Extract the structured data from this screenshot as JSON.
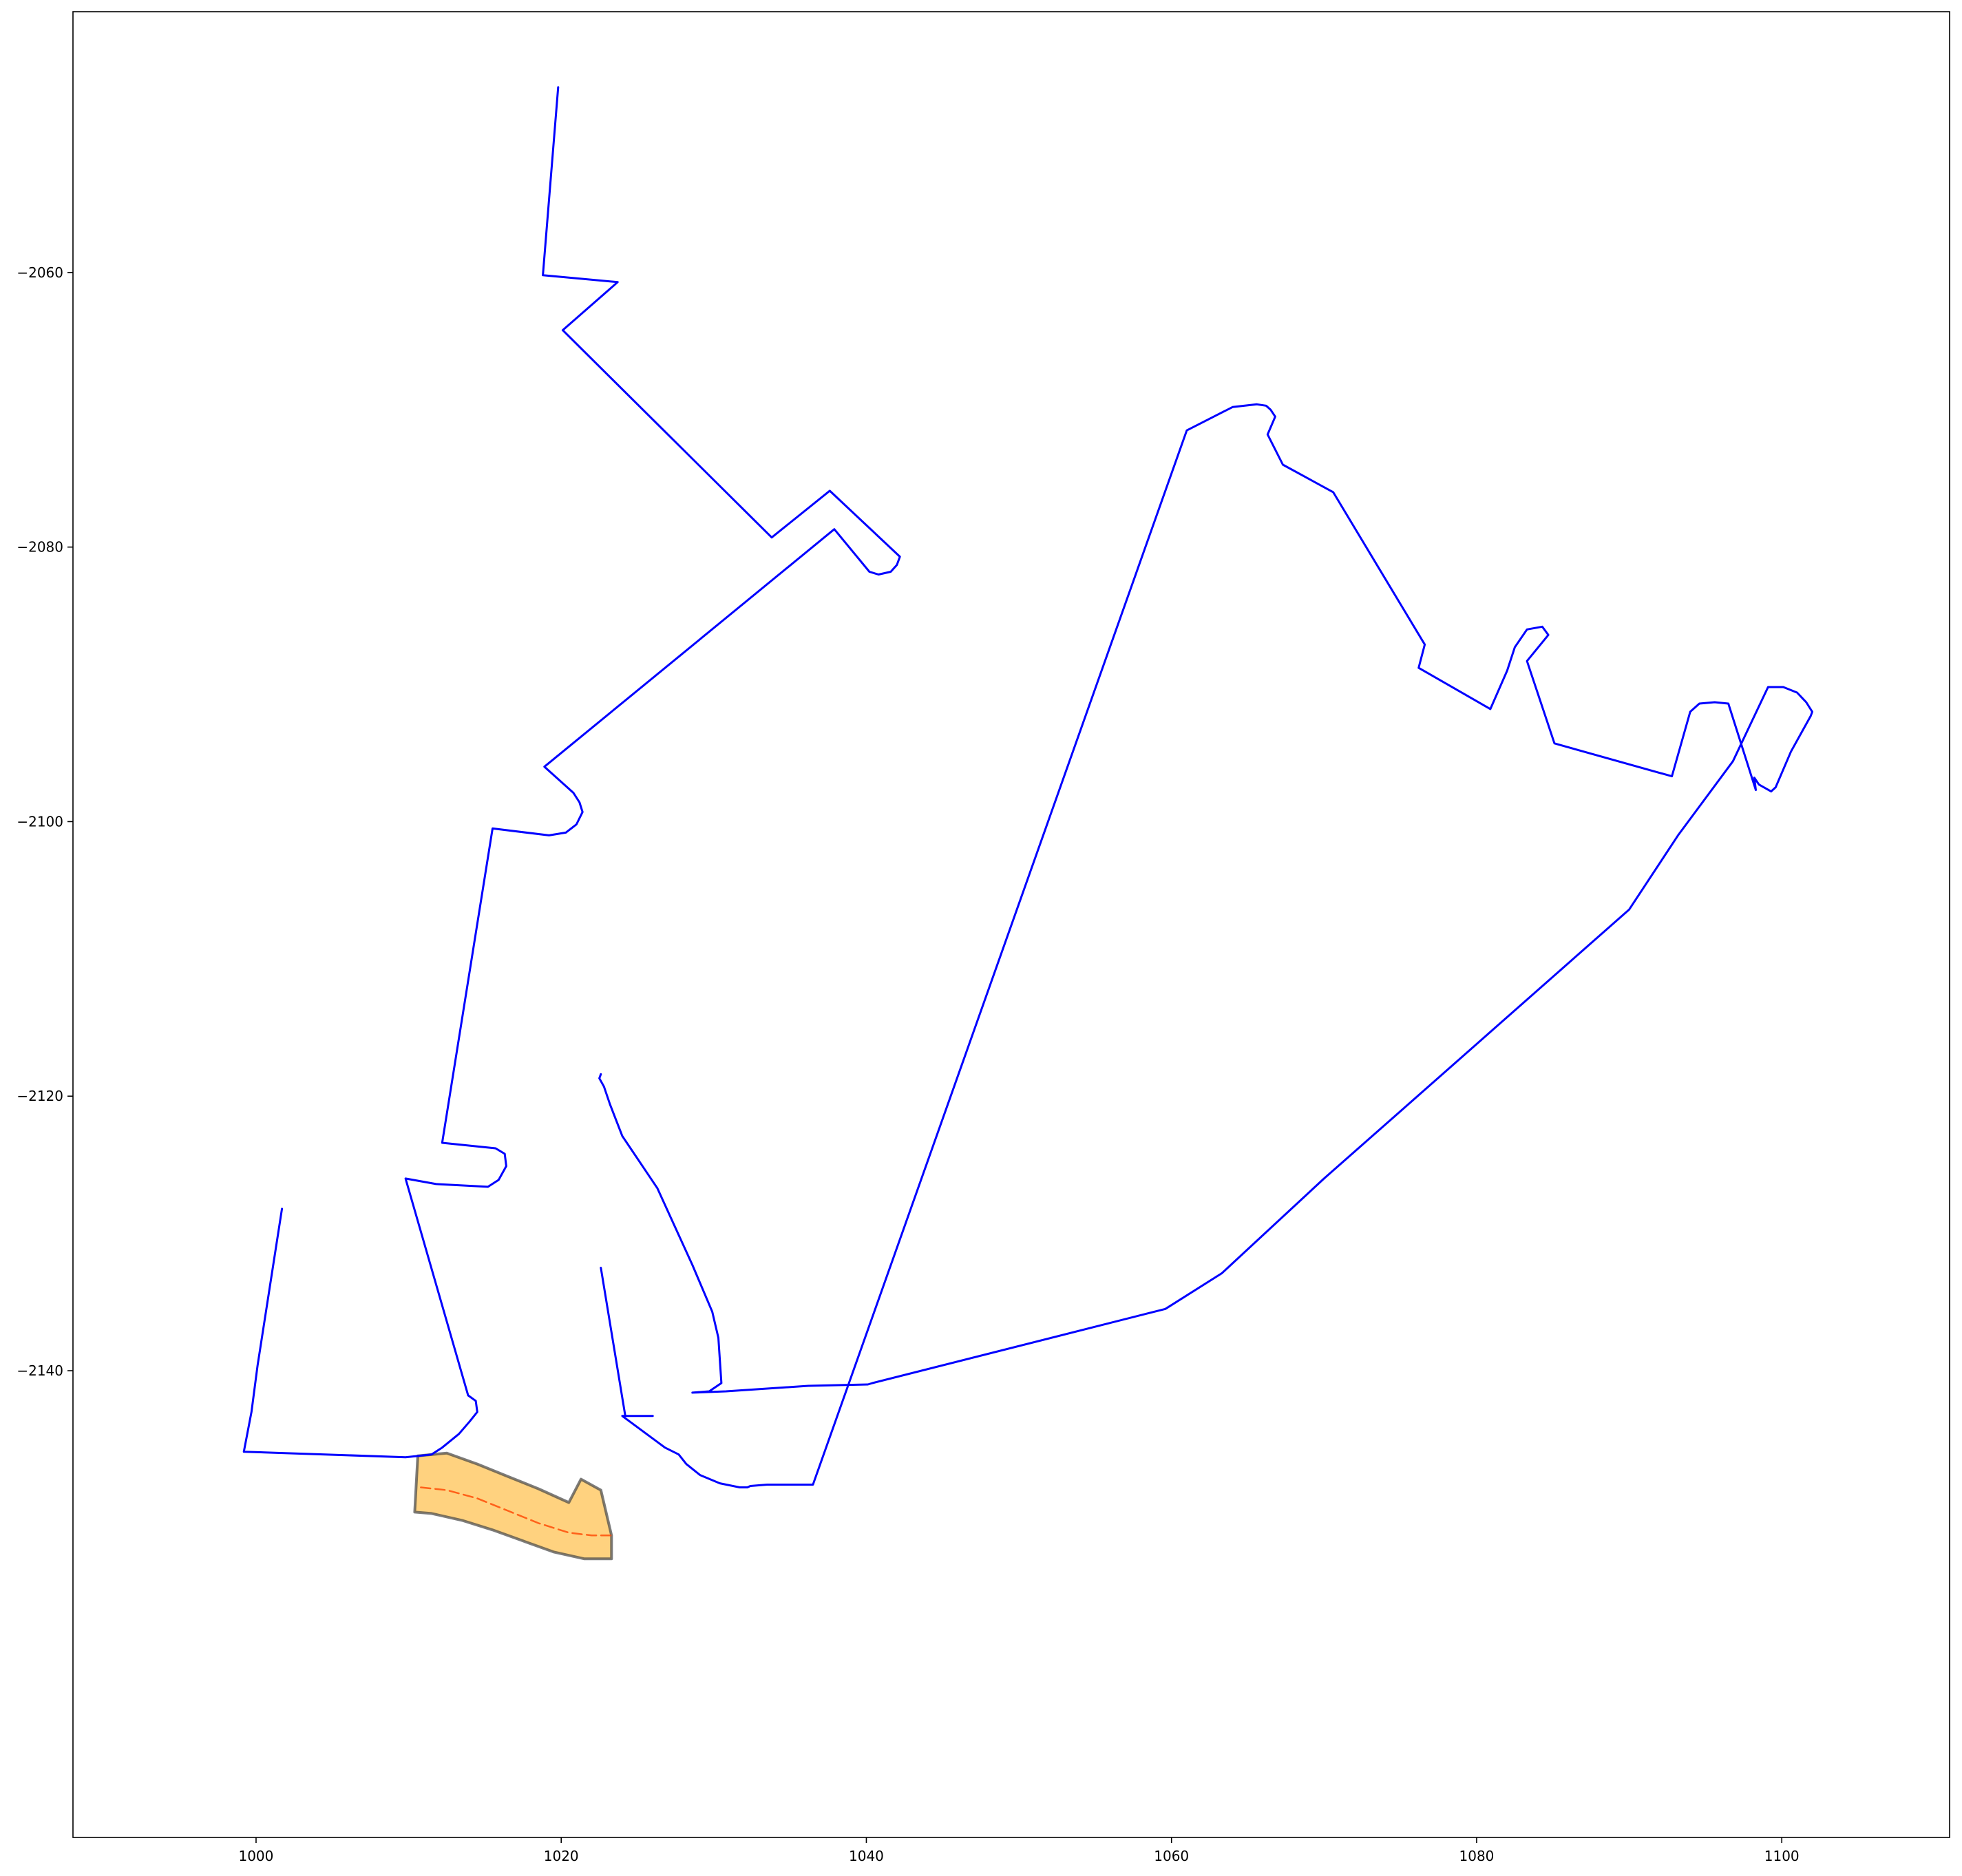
{
  "chart_data": {
    "type": "line",
    "title": "",
    "xlabel": "",
    "ylabel": "",
    "xlim": [
      988,
      1111
    ],
    "ylim": [
      -2174,
      -2041
    ],
    "xticks": [
      1000,
      1020,
      1040,
      1060,
      1080,
      1100
    ],
    "yticks": [
      -2060,
      -2080,
      -2100,
      -2120,
      -2140
    ],
    "xtick_labels": [
      "1000",
      "1020",
      "1040",
      "1060",
      "1080",
      "1100"
    ],
    "ytick_labels": [
      "−2060",
      "−2080",
      "−2100",
      "−2120",
      "−2140"
    ],
    "grid": false,
    "legend": "none",
    "colors": {
      "boundary": "#0000ff",
      "fill": "#ffa500",
      "fill_edge": "#444444",
      "centerline": "#ff4500"
    },
    "series": [
      {
        "kind": "boundary-west",
        "color": "#0000ff",
        "x": [
          1019.8,
          1018.8,
          1023.7,
          1020.1,
          1033.8,
          1037.6,
          1042.2,
          1042.0,
          1041.6,
          1040.8,
          1040.2,
          1037.9,
          1018.9,
          1020.8,
          1021.2,
          1021.4,
          1021.0,
          1020.3,
          1019.2,
          1015.5,
          1012.2,
          1015.7,
          1016.3,
          1016.4,
          1015.9,
          1015.2,
          1011.8,
          1009.8,
          1013.9,
          1014.4,
          1014.5,
          1014.0,
          1013.3,
          1012.2,
          1011.5,
          1009.8,
          999.2,
          999.7,
          1000.1,
          1001.7
        ],
        "y": [
          -2046.5,
          -2060.2,
          -2060.7,
          -2064.2,
          -2079.3,
          -2075.9,
          -2080.7,
          -2081.3,
          -2081.8,
          -2082.0,
          -2081.8,
          -2078.7,
          -2096.0,
          -2097.9,
          -2098.6,
          -2099.3,
          -2100.2,
          -2100.8,
          -2101.0,
          -2100.5,
          -2123.4,
          -2123.8,
          -2124.2,
          -2125.1,
          -2126.1,
          -2126.6,
          -2126.4,
          -2126.0,
          -2141.8,
          -2142.2,
          -2143.0,
          -2143.7,
          -2144.6,
          -2145.6,
          -2146.1,
          -2146.3,
          -2145.9,
          -2143.0,
          -2139.6,
          -2128.2
        ]
      },
      {
        "kind": "boundary-main",
        "color": "#0000ff",
        "x": [
          1022.6,
          1024.2,
          1026.0,
          1026.0,
          1024.0,
          1026.8,
          1027.7,
          1028.2,
          1029.1,
          1030.4,
          1031.7,
          1032.0,
          1032.2,
          1032.4,
          1033.5,
          1036.5,
          1061.0,
          1064.0,
          1065.6,
          1066.2,
          1066.5,
          1066.8,
          1066.3,
          1067.3,
          1070.6,
          1076.6,
          1076.2,
          1080.9,
          1082.0,
          1082.5,
          1083.3,
          1084.3,
          1084.7,
          1083.3,
          1085.1,
          1092.8,
          1094.0,
          1094.6,
          1095.6,
          1096.5,
          1098.3,
          1098.2,
          1098.5,
          1099.3,
          1099.6,
          1100.6,
          1101.4,
          1101.9,
          1102.0,
          1101.6,
          1101.0,
          1100.1,
          1099.1,
          1096.8,
          1093.2,
          1090.0,
          1080.0,
          1070.0,
          1063.3,
          1059.6,
          1040.4,
          1040.1,
          1036.2,
          1030.8,
          1028.6,
          1029.7,
          1030.5,
          1030.3,
          1029.9,
          1028.6,
          1026.3,
          1024.0,
          1023.2,
          1022.8,
          1022.5,
          1022.6
        ],
        "y": [
          -2132.5,
          -2143.3,
          -2143.3,
          -2143.3,
          -2143.3,
          -2145.6,
          -2146.1,
          -2146.8,
          -2147.6,
          -2148.2,
          -2148.5,
          -2148.5,
          -2148.5,
          -2148.4,
          -2148.3,
          -2148.3,
          -2071.5,
          -2069.8,
          -2069.6,
          -2069.7,
          -2070.0,
          -2070.5,
          -2071.8,
          -2074.0,
          -2076.0,
          -2087.1,
          -2088.8,
          -2091.8,
          -2089.0,
          -2087.3,
          -2086.0,
          -2085.8,
          -2086.4,
          -2088.3,
          -2094.3,
          -2096.7,
          -2092.0,
          -2091.4,
          -2091.3,
          -2091.4,
          -2097.7,
          -2096.8,
          -2097.3,
          -2097.8,
          -2097.5,
          -2094.9,
          -2093.3,
          -2092.3,
          -2092.0,
          -2091.3,
          -2090.6,
          -2090.2,
          -2090.2,
          -2095.6,
          -2101.0,
          -2106.4,
          -2116.2,
          -2126.0,
          -2132.9,
          -2135.5,
          -2140.9,
          -2141.0,
          -2141.1,
          -2141.5,
          -2141.6,
          -2141.5,
          -2140.9,
          -2137.6,
          -2135.7,
          -2132.3,
          -2126.7,
          -2122.9,
          -2120.6,
          -2119.3,
          -2118.7,
          -2118.4
        ]
      },
      {
        "kind": "highlighted-lane-centerline",
        "color": "#ff4500",
        "x": [
          1010.8,
          1012.5,
          1014.5,
          1016.5,
          1018.5,
          1020.5,
          1022.0,
          1023.3
        ],
        "y": [
          -2148.5,
          -2148.7,
          -2149.3,
          -2150.2,
          -2151.1,
          -2151.8,
          -2152.0,
          -2152.0
        ]
      }
    ],
    "highlighted_lane_polygon": {
      "fill": "#ffa500",
      "edge": "#444444",
      "x": [
        1010.6,
        1012.5,
        1014.5,
        1016.5,
        1018.5,
        1020.5,
        1021.3,
        1022.6,
        1023.3,
        1023.3,
        1021.5,
        1019.5,
        1017.5,
        1015.5,
        1013.5,
        1011.5,
        1010.4
      ],
      "y": [
        -2146.2,
        -2146.0,
        -2146.8,
        -2147.7,
        -2148.6,
        -2149.6,
        -2147.9,
        -2148.7,
        -2152.0,
        -2153.7,
        -2153.7,
        -2153.2,
        -2152.4,
        -2151.6,
        -2150.9,
        -2150.4,
        -2150.3
      ]
    }
  }
}
